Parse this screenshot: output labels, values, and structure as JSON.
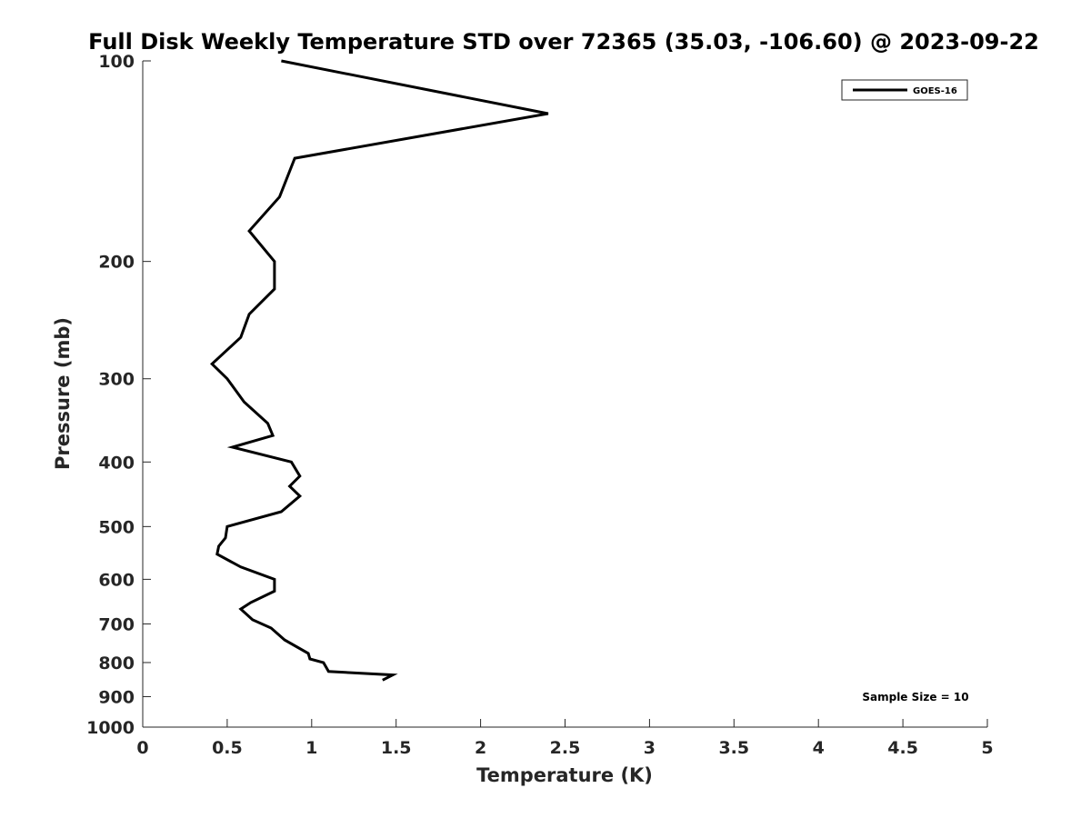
{
  "chart_data": {
    "type": "line",
    "title": "Full Disk Weekly Temperature STD over 72365 (35.03, -106.60) @ 2023-09-22",
    "xlabel": "Temperature (K)",
    "ylabel": "Pressure (mb)",
    "xlim": [
      0,
      5
    ],
    "ylim": [
      1000,
      100
    ],
    "y_scale": "log",
    "y_reversed": true,
    "x_ticks": [
      "0",
      "0.5",
      "1",
      "1.5",
      "2",
      "2.5",
      "3",
      "3.5",
      "4",
      "4.5",
      "5"
    ],
    "y_ticks": [
      "100",
      "200",
      "300",
      "400",
      "500",
      "600",
      "700",
      "800",
      "900",
      "1000"
    ],
    "grid": false,
    "legend_position": "top-right",
    "series": [
      {
        "name": "GOES-16",
        "color": "#000000",
        "points": [
          {
            "x": 0.82,
            "p": 100
          },
          {
            "x": 2.4,
            "p": 120
          },
          {
            "x": 0.9,
            "p": 140
          },
          {
            "x": 0.81,
            "p": 160
          },
          {
            "x": 0.63,
            "p": 180
          },
          {
            "x": 0.78,
            "p": 200
          },
          {
            "x": 0.78,
            "p": 220
          },
          {
            "x": 0.63,
            "p": 240
          },
          {
            "x": 0.58,
            "p": 260
          },
          {
            "x": 0.41,
            "p": 285
          },
          {
            "x": 0.5,
            "p": 300
          },
          {
            "x": 0.6,
            "p": 325
          },
          {
            "x": 0.74,
            "p": 350
          },
          {
            "x": 0.77,
            "p": 365
          },
          {
            "x": 0.53,
            "p": 380
          },
          {
            "x": 0.88,
            "p": 400
          },
          {
            "x": 0.93,
            "p": 420
          },
          {
            "x": 0.87,
            "p": 435
          },
          {
            "x": 0.93,
            "p": 450
          },
          {
            "x": 0.82,
            "p": 475
          },
          {
            "x": 0.5,
            "p": 500
          },
          {
            "x": 0.49,
            "p": 520
          },
          {
            "x": 0.45,
            "p": 535
          },
          {
            "x": 0.44,
            "p": 550
          },
          {
            "x": 0.58,
            "p": 575
          },
          {
            "x": 0.78,
            "p": 600
          },
          {
            "x": 0.78,
            "p": 625
          },
          {
            "x": 0.64,
            "p": 650
          },
          {
            "x": 0.58,
            "p": 665
          },
          {
            "x": 0.65,
            "p": 690
          },
          {
            "x": 0.76,
            "p": 710
          },
          {
            "x": 0.84,
            "p": 740
          },
          {
            "x": 0.98,
            "p": 775
          },
          {
            "x": 0.99,
            "p": 790
          },
          {
            "x": 1.07,
            "p": 800
          },
          {
            "x": 1.1,
            "p": 825
          },
          {
            "x": 1.48,
            "p": 835
          },
          {
            "x": 1.42,
            "p": 850
          }
        ]
      }
    ],
    "annotations": [
      {
        "text": "Sample Size = 10",
        "x": 4.5,
        "p": 900
      }
    ]
  }
}
